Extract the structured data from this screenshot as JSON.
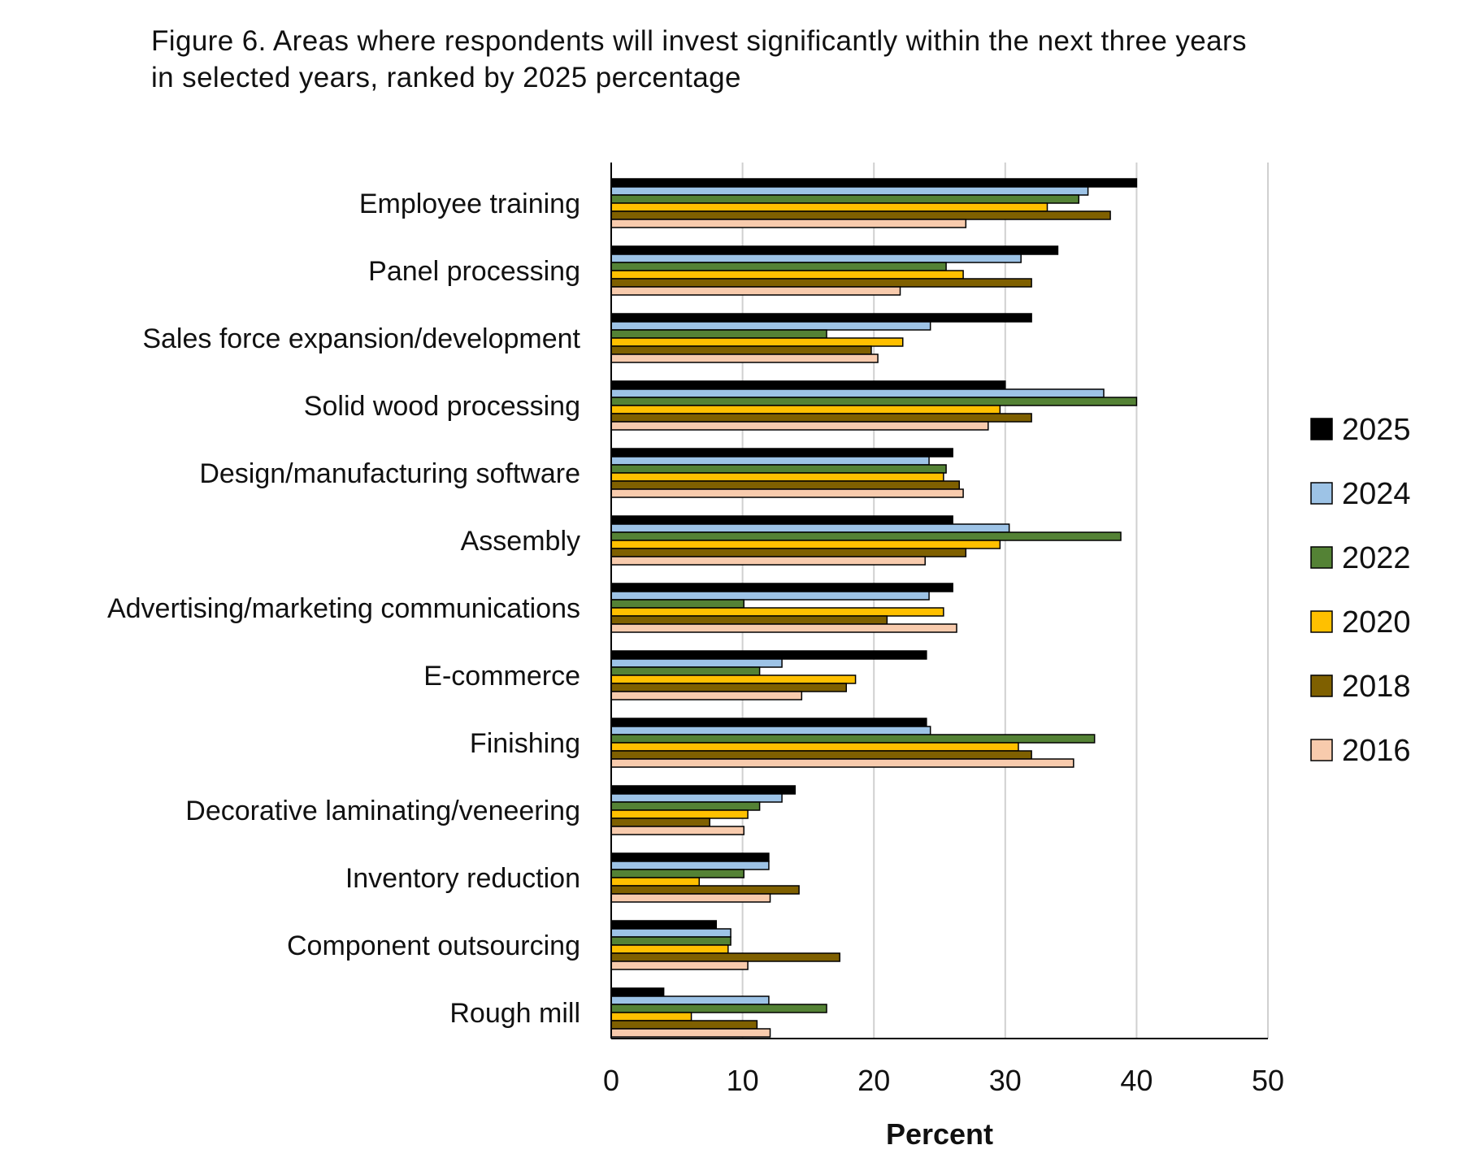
{
  "chart_data": {
    "type": "bar",
    "orientation": "horizontal",
    "title": "Figure 6. Areas where respondents will invest significantly within the next three years\n in selected years, ranked by 2025 percentage",
    "xlabel": "Percent",
    "ylabel": "",
    "xlim": [
      0,
      50
    ],
    "xticks": [
      0,
      10,
      20,
      30,
      40,
      50
    ],
    "grid": "vertical",
    "legend_position": "right",
    "categories": [
      "Employee training",
      "Panel processing",
      "Sales force expansion/development",
      "Solid wood processing",
      "Design/manufacturing software",
      "Assembly",
      "Advertising/marketing communications",
      "E-commerce",
      "Finishing",
      "Decorative laminating/veneering",
      "Inventory reduction",
      "Component outsourcing",
      "Rough mill"
    ],
    "series": [
      {
        "name": "2025",
        "color": "#000000",
        "values": [
          40,
          34,
          32,
          30,
          26,
          26,
          26,
          24,
          24,
          14,
          12,
          8,
          4
        ]
      },
      {
        "name": "2024",
        "color": "#9DC3E6",
        "values": [
          36.3,
          31.2,
          24.3,
          37.5,
          24.2,
          30.3,
          24.2,
          13,
          24.3,
          13,
          12,
          9.1,
          12
        ]
      },
      {
        "name": "2022",
        "color": "#548235",
        "values": [
          35.6,
          25.5,
          16.4,
          40,
          25.5,
          38.8,
          10.1,
          11.3,
          36.8,
          11.3,
          10.1,
          9.1,
          16.4
        ]
      },
      {
        "name": "2020",
        "color": "#FFC000",
        "values": [
          33.2,
          26.8,
          22.2,
          29.6,
          25.3,
          29.6,
          25.3,
          18.6,
          31,
          10.4,
          6.7,
          8.9,
          6.1
        ]
      },
      {
        "name": "2018",
        "color": "#7F6000",
        "values": [
          38,
          32,
          19.8,
          32,
          26.5,
          27,
          21,
          17.9,
          32,
          7.5,
          14.3,
          17.4,
          11.1
        ]
      },
      {
        "name": "2016",
        "color": "#F8CBAD",
        "values": [
          27,
          22,
          20.3,
          28.7,
          26.8,
          23.9,
          26.3,
          14.5,
          35.2,
          10.1,
          12.1,
          10.4,
          12.1
        ]
      }
    ]
  }
}
